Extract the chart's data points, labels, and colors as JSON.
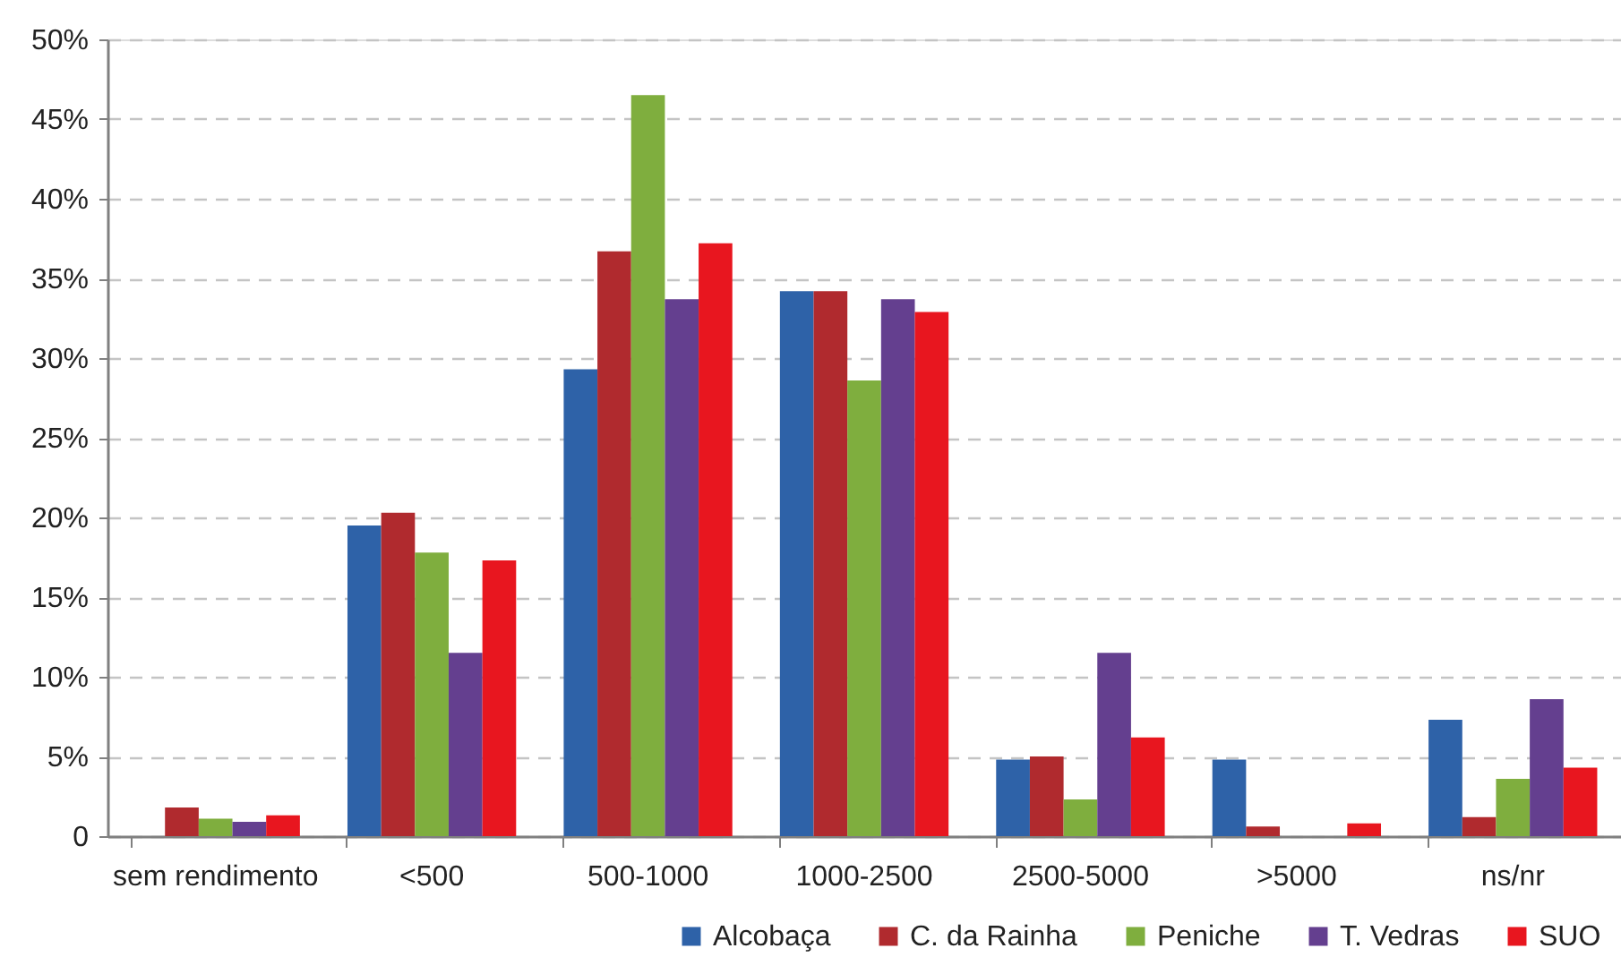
{
  "chart_data": {
    "type": "bar",
    "categories": [
      "sem rendimento",
      "<500",
      "500-1000",
      "1000-2500",
      "2500-5000",
      ">5000",
      "ns/nr"
    ],
    "series": [
      {
        "name": "Alcobaça",
        "color": "#2e62a8",
        "values": [
          null,
          19.5,
          29.3,
          34.2,
          4.8,
          4.8,
          7.3
        ]
      },
      {
        "name": "C. da Rainha",
        "color": "#b02a2e",
        "values": [
          1.8,
          20.3,
          36.7,
          34.2,
          5.0,
          0.6,
          1.2
        ]
      },
      {
        "name": "Peniche",
        "color": "#7fae3e",
        "values": [
          1.1,
          17.8,
          46.5,
          28.6,
          2.3,
          null,
          3.6
        ]
      },
      {
        "name": "T. Vedras",
        "color": "#643f8f",
        "values": [
          0.9,
          11.5,
          33.7,
          33.7,
          11.5,
          null,
          8.6
        ]
      },
      {
        "name": "SUO",
        "color": "#e8161f",
        "values": [
          1.3,
          17.3,
          37.2,
          32.9,
          6.2,
          0.8,
          4.3
        ]
      }
    ],
    "ylim": [
      0,
      50
    ],
    "yticks": [
      {
        "value": 0,
        "label": "0"
      },
      {
        "value": 5,
        "label": "5%"
      },
      {
        "value": 10,
        "label": "10%"
      },
      {
        "value": 15,
        "label": "15%"
      },
      {
        "value": 20,
        "label": "20%"
      },
      {
        "value": 25,
        "label": "25%"
      },
      {
        "value": 30,
        "label": "30%"
      },
      {
        "value": 35,
        "label": "35%"
      },
      {
        "value": 40,
        "label": "40%"
      },
      {
        "value": 45,
        "label": "45%"
      },
      {
        "value": 50,
        "label": "50%"
      }
    ],
    "grid": "y",
    "legend": "bottom right"
  }
}
